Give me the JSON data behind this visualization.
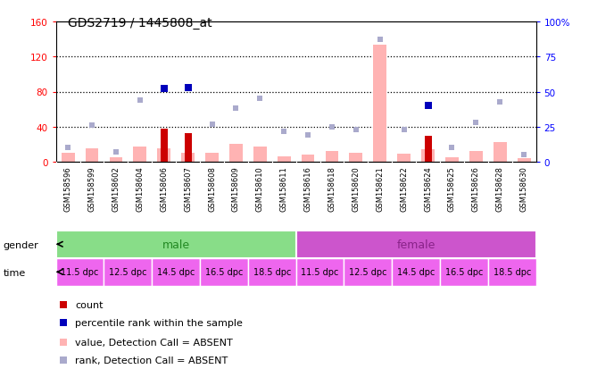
{
  "title": "GDS2719 / 1445808_at",
  "samples": [
    "GSM158596",
    "GSM158599",
    "GSM158602",
    "GSM158604",
    "GSM158606",
    "GSM158607",
    "GSM158608",
    "GSM158609",
    "GSM158610",
    "GSM158611",
    "GSM158616",
    "GSM158618",
    "GSM158620",
    "GSM158621",
    "GSM158622",
    "GSM158624",
    "GSM158625",
    "GSM158626",
    "GSM158628",
    "GSM158630"
  ],
  "value_bars": [
    10,
    15,
    5,
    17,
    15,
    10,
    10,
    20,
    17,
    6,
    8,
    12,
    10,
    133,
    9,
    14,
    5,
    12,
    23,
    4
  ],
  "count_bars": [
    0,
    0,
    0,
    0,
    38,
    33,
    0,
    0,
    0,
    0,
    0,
    0,
    0,
    0,
    0,
    30,
    0,
    0,
    0,
    0
  ],
  "rank_markers": [
    10,
    26,
    7,
    44,
    52,
    53,
    27,
    38,
    45,
    22,
    19,
    25,
    23,
    87,
    23,
    40,
    10,
    28,
    43,
    5
  ],
  "is_present": [
    false,
    false,
    false,
    false,
    true,
    true,
    false,
    false,
    false,
    false,
    false,
    false,
    false,
    false,
    false,
    true,
    false,
    false,
    false,
    false
  ],
  "ylim_left": [
    0,
    160
  ],
  "ylim_right": [
    0,
    100
  ],
  "yticks_left": [
    0,
    40,
    80,
    120,
    160
  ],
  "yticks_right": [
    0,
    25,
    50,
    75,
    100
  ],
  "ytick_labels_right": [
    "0",
    "25",
    "50",
    "75",
    "100%"
  ],
  "color_count_present": "#cc0000",
  "color_value_absent": "#ffb3b3",
  "color_rank_present": "#0000bb",
  "color_rank_absent": "#aaaacc",
  "color_male_bg": "#88dd88",
  "color_female_bg": "#cc55cc",
  "color_time_bg": "#ee66ee",
  "color_xtick_bg": "#cccccc",
  "male_text_color": "#228822",
  "female_text_color": "#882288"
}
